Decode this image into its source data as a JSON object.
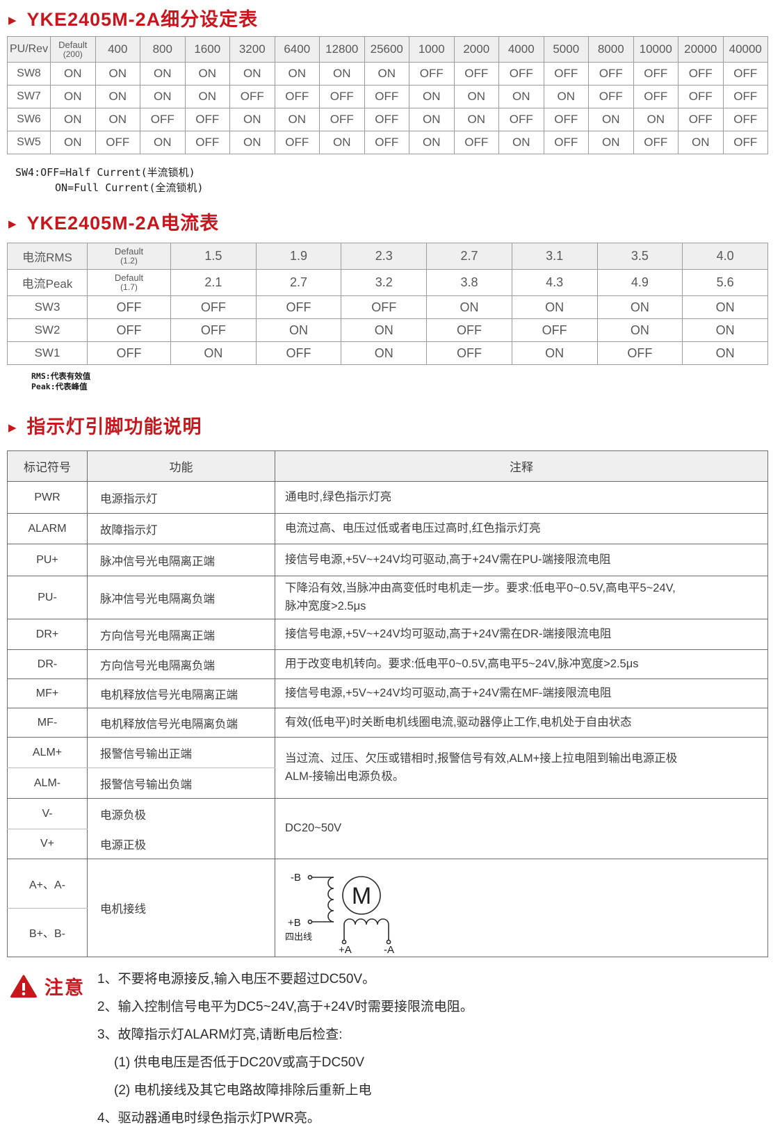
{
  "colors": {
    "accent_red": "#c8161d",
    "header_bg": "#efefef",
    "grid_text": "#595757"
  },
  "icons": {
    "bullet": "right-triangle-icon",
    "notice": "warning-triangle-icon"
  },
  "sections": {
    "microstep_title": "YKE2405M-2A细分设定表",
    "current_title": "YKE2405M-2A电流表",
    "pin_title": "指示灯引脚功能说明"
  },
  "microstep_table": {
    "rows": [
      {
        "label": "PU/Rev",
        "header": true,
        "values": [
          {
            "main": "Default",
            "sub": "(200)"
          },
          "400",
          "800",
          "1600",
          "3200",
          "6400",
          "12800",
          "25600",
          "1000",
          "2000",
          "4000",
          "5000",
          "8000",
          "10000",
          "20000",
          "40000"
        ]
      },
      {
        "label": "SW8",
        "values": [
          "ON",
          "ON",
          "ON",
          "ON",
          "ON",
          "ON",
          "ON",
          "ON",
          "OFF",
          "OFF",
          "OFF",
          "OFF",
          "OFF",
          "OFF",
          "OFF",
          "OFF"
        ]
      },
      {
        "label": "SW7",
        "values": [
          "ON",
          "ON",
          "ON",
          "ON",
          "OFF",
          "OFF",
          "OFF",
          "OFF",
          "ON",
          "ON",
          "ON",
          "ON",
          "OFF",
          "OFF",
          "OFF",
          "OFF"
        ]
      },
      {
        "label": "SW6",
        "values": [
          "ON",
          "ON",
          "OFF",
          "OFF",
          "ON",
          "ON",
          "OFF",
          "OFF",
          "ON",
          "ON",
          "OFF",
          "OFF",
          "ON",
          "ON",
          "OFF",
          "OFF"
        ]
      },
      {
        "label": "SW5",
        "values": [
          "ON",
          "OFF",
          "ON",
          "OFF",
          "ON",
          "OFF",
          "ON",
          "OFF",
          "ON",
          "OFF",
          "ON",
          "OFF",
          "ON",
          "OFF",
          "ON",
          "OFF"
        ]
      }
    ]
  },
  "notes": {
    "sw4_line1": "SW4:OFF=Half Current(半流锁机)",
    "sw4_line2": "ON=Full Current(全流锁机)",
    "rms_line1": "RMS:代表有效值",
    "rms_line2": "Peak:代表峰值"
  },
  "current_table": {
    "rows": [
      {
        "label": "电流RMS",
        "header": true,
        "values": [
          {
            "main": "Default",
            "sub": "(1.2)"
          },
          "1.5",
          "1.9",
          "2.3",
          "2.7",
          "3.1",
          "3.5",
          "4.0"
        ]
      },
      {
        "label": "电流Peak",
        "values": [
          {
            "main": "Default",
            "sub": "(1.7)"
          },
          "2.1",
          "2.7",
          "3.2",
          "3.8",
          "4.3",
          "4.9",
          "5.6"
        ]
      },
      {
        "label": "SW3",
        "values": [
          "OFF",
          "OFF",
          "OFF",
          "OFF",
          "ON",
          "ON",
          "ON",
          "ON"
        ]
      },
      {
        "label": "SW2",
        "values": [
          "OFF",
          "OFF",
          "ON",
          "ON",
          "OFF",
          "OFF",
          "ON",
          "ON"
        ]
      },
      {
        "label": "SW1",
        "values": [
          "OFF",
          "ON",
          "OFF",
          "ON",
          "OFF",
          "ON",
          "OFF",
          "ON"
        ]
      }
    ]
  },
  "pin_table": {
    "headers": [
      "标记符号",
      "功能",
      "注释"
    ],
    "rows": [
      {
        "sym": "PWR",
        "func": "电源指示灯",
        "note": "通电时,绿色指示灯亮"
      },
      {
        "sym": "ALARM",
        "func": "故障指示灯",
        "note": "电流过高、电压过低或者电压过高时,红色指示灯亮"
      },
      {
        "sym": "PU+",
        "func": "脉冲信号光电隔离正端",
        "note": "接信号电源,+5V~+24V均可驱动,高于+24V需在PU-端接限流电阻"
      },
      {
        "sym": "PU-",
        "func": "脉冲信号光电隔离负端",
        "note": "下降沿有效,当脉冲由高变低时电机走一步。要求:低电平0~0.5V,高电平5~24V,\n脉冲宽度>2.5μs"
      },
      {
        "sym": "DR+",
        "func": "方向信号光电隔离正端",
        "note": "接信号电源,+5V~+24V均可驱动,高于+24V需在DR-端接限流电阻"
      },
      {
        "sym": "DR-",
        "func": "方向信号光电隔离负端",
        "note": "用于改变电机转向。要求:低电平0~0.5V,高电平5~24V,脉冲宽度>2.5μs"
      },
      {
        "sym": "MF+",
        "func": "电机释放信号光电隔离正端",
        "note": "接信号电源,+5V~+24V均可驱动,高于+24V需在MF-端接限流电阻"
      },
      {
        "sym": "MF-",
        "func": "电机释放信号光电隔离负端",
        "note": "有效(低电平)时关断电机线圈电流,驱动器停止工作,电机处于自由状态"
      },
      {
        "sym": "ALM+",
        "func": "报警信号输出正端"
      },
      {
        "sym": "ALM-",
        "func": "报警信号输出负端"
      },
      {
        "sym": "V-",
        "func": "电源负极"
      },
      {
        "sym": "V+",
        "func": "电源正极"
      },
      {
        "sym": "A+、A-"
      },
      {
        "sym": "B+、B-"
      }
    ],
    "alm_note": "当过流、过压、欠压或错相时,报警信号有效,ALM+接上拉电阻到输出电源正极\nALM-接输出电源负极。",
    "power_note": "DC20~50V",
    "motor_func": "电机接线"
  },
  "motor_diagram": {
    "terminal_b_minus": "-B",
    "terminal_b_plus": "+B",
    "four_wire_label": "四出线",
    "motor_label": "M",
    "terminal_a_plus": "+A",
    "terminal_a_minus": "-A"
  },
  "notice": {
    "label": "注意",
    "items": [
      "1、不要将电源接反,输入电压不要超过DC50V。",
      "2、输入控制信号电平为DC5~24V,高于+24V时需要接限流电阻。",
      "3、故障指示灯ALARM灯亮,请断电后检查:",
      "(1) 供电电压是否低于DC20V或高于DC50V",
      "(2) 电机接线及其它电路故障排除后重新上电",
      "4、驱动器通电时绿色指示灯PWR亮。"
    ]
  }
}
